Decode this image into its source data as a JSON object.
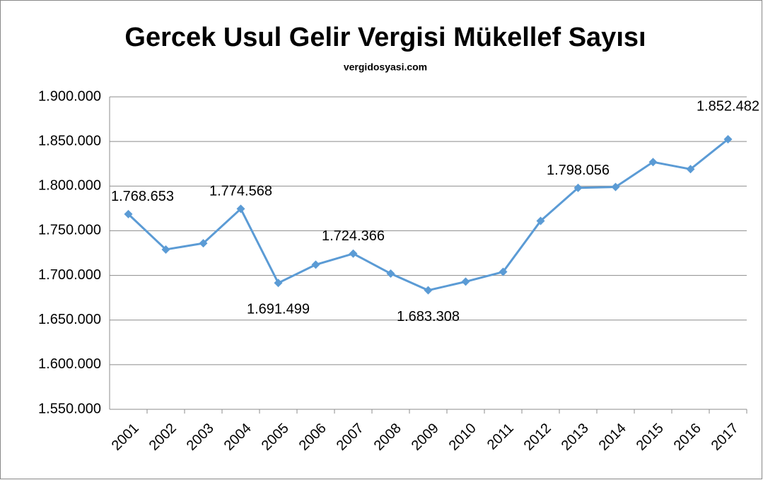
{
  "chart_data": {
    "type": "line",
    "title": "Gercek Usul Gelir Vergisi Mükellef Sayısı",
    "subtitle": "vergidosyasi.com",
    "categories": [
      "2001",
      "2002",
      "2003",
      "2004",
      "2005",
      "2006",
      "2007",
      "2008",
      "2009",
      "2010",
      "2011",
      "2012",
      "2013",
      "2014",
      "2015",
      "2016",
      "2017"
    ],
    "series": [
      {
        "name": "Mükellef Sayısı",
        "color": "#5b9bd5",
        "values": [
          1768653,
          1729000,
          1736000,
          1774568,
          1691499,
          1712000,
          1724366,
          1702000,
          1683308,
          1693000,
          1704000,
          1761000,
          1798056,
          1799000,
          1827000,
          1819000,
          1852482
        ],
        "value_labels": [
          "1.768.653",
          null,
          null,
          "1.774.568",
          "1.691.499",
          null,
          "1.724.366",
          null,
          "1.683.308",
          null,
          null,
          null,
          "1.798.056",
          null,
          null,
          null,
          "1.852.482"
        ]
      }
    ],
    "ylim": [
      1550000,
      1900000
    ],
    "yticks": [
      {
        "value": 1550000,
        "label": "1.550.000"
      },
      {
        "value": 1600000,
        "label": "1.600.000"
      },
      {
        "value": 1650000,
        "label": "1.650.000"
      },
      {
        "value": 1700000,
        "label": "1.700.000"
      },
      {
        "value": 1750000,
        "label": "1.750.000"
      },
      {
        "value": 1800000,
        "label": "1.800.000"
      },
      {
        "value": 1850000,
        "label": "1.850.000"
      },
      {
        "value": 1900000,
        "label": "1.900.000"
      }
    ],
    "grid": true
  }
}
